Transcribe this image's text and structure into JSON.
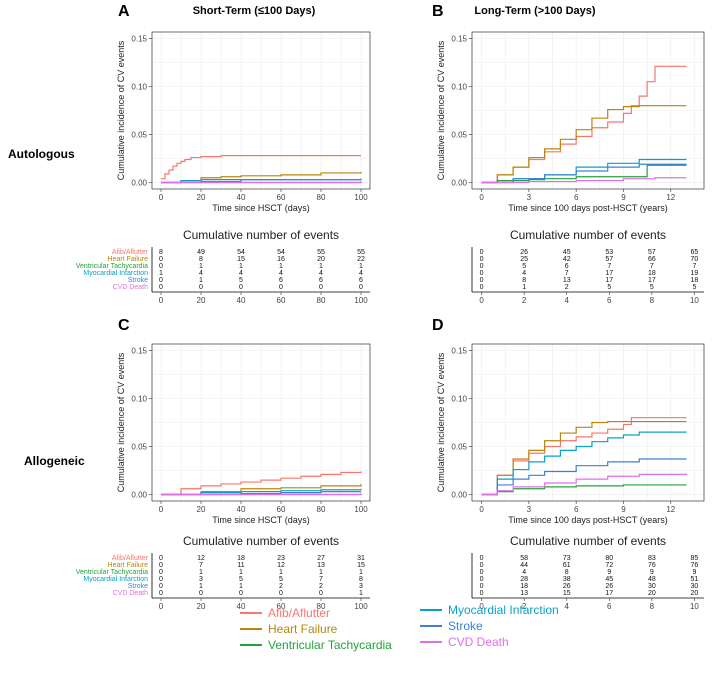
{
  "figure": {
    "column_titles": [
      "Short-Term (≤100 Days)",
      "Long-Term (>100 Days)"
    ],
    "row_titles": [
      "Autologous",
      "Allogeneic"
    ],
    "panel_letters": [
      "A",
      "B",
      "C",
      "D"
    ],
    "risk_table_title": "Cumulative number of events"
  },
  "colors": {
    "Afib/Aflutter": "#f8766d",
    "Heart Failure": "#b8860b",
    "Ventricular Tachycardia": "#22a33a",
    "Myocardial Infarction": "#0aa0c8",
    "Stroke": "#3b82d6",
    "CVD Death": "#e070e8"
  },
  "legend": [
    "Afib/Aflutter",
    "Heart Failure",
    "Ventricular Tachycardia",
    "Myocardial Infarction",
    "Stroke",
    "CVD Death"
  ],
  "chart_data": [
    {
      "type": "line",
      "panel": "A",
      "title": "Short-Term (≤100 Days)",
      "row": "Autologous",
      "xlabel": "Time since HSCT (days)",
      "ylabel": "Cumulative incidence of CV events",
      "xlim": [
        0,
        100
      ],
      "ylim": [
        0,
        0.15
      ],
      "xticks": [
        0,
        20,
        40,
        60,
        80,
        100
      ],
      "yticks": [
        0.0,
        0.05,
        0.1,
        0.15
      ],
      "series": [
        {
          "name": "Afib/Aflutter",
          "x": [
            0,
            2,
            4,
            6,
            8,
            10,
            12,
            15,
            20,
            30,
            40,
            60,
            80,
            100
          ],
          "y": [
            0.004,
            0.009,
            0.013,
            0.017,
            0.02,
            0.022,
            0.024,
            0.026,
            0.027,
            0.028,
            0.028,
            0.028,
            0.028,
            0.028
          ]
        },
        {
          "name": "Heart Failure",
          "x": [
            0,
            10,
            20,
            30,
            40,
            60,
            80,
            100
          ],
          "y": [
            0.0,
            0.002,
            0.005,
            0.006,
            0.007,
            0.008,
            0.01,
            0.011
          ]
        },
        {
          "name": "Ventricular Tachycardia",
          "x": [
            0,
            100
          ],
          "y": [
            0.0,
            0.001
          ]
        },
        {
          "name": "Myocardial Infarction",
          "x": [
            0,
            10,
            20,
            100
          ],
          "y": [
            0.0,
            0.002,
            0.003,
            0.003
          ]
        },
        {
          "name": "Stroke",
          "x": [
            0,
            20,
            40,
            100
          ],
          "y": [
            0.0,
            0.001,
            0.003,
            0.004
          ]
        },
        {
          "name": "CVD Death",
          "x": [
            0,
            100
          ],
          "y": [
            0.0,
            0.0
          ]
        }
      ],
      "risk_table": {
        "times": [
          0,
          20,
          40,
          60,
          80,
          100
        ],
        "rows": [
          {
            "name": "Afib/Aflutter",
            "values": [
              "8",
              "49",
              "54",
              "54",
              "55",
              "55"
            ]
          },
          {
            "name": "Heart Failure",
            "values": [
              "0",
              "8",
              "15",
              "16",
              "20",
              "22"
            ]
          },
          {
            "name": "Ventricular Tachycardia",
            "values": [
              "0",
              "1",
              "1",
              "1",
              "1",
              "1"
            ]
          },
          {
            "name": "Myocardial Infarction",
            "values": [
              "1",
              "4",
              "4",
              "4",
              "4",
              "4"
            ]
          },
          {
            "name": "Stroke",
            "values": [
              "0",
              "1",
              "5",
              "6",
              "6",
              "6"
            ]
          },
          {
            "name": "CVD Death",
            "values": [
              "0",
              "0",
              "0",
              "0",
              "0",
              "0"
            ]
          }
        ]
      }
    },
    {
      "type": "line",
      "panel": "B",
      "title": "Long-Term (>100 Days)",
      "row": "Autologous",
      "xlabel": "Time since 100 days post-HSCT (years)",
      "ylabel": "Cumulative incidence of CV events",
      "xlim": [
        0,
        13.5
      ],
      "ylim": [
        0,
        0.15
      ],
      "xticks": [
        0,
        3,
        6,
        9,
        12
      ],
      "yticks": [
        0.0,
        0.05,
        0.1,
        0.15
      ],
      "series": [
        {
          "name": "Afib/Aflutter",
          "x": [
            0,
            1,
            2,
            3,
            4,
            5,
            6,
            7,
            8,
            9,
            9.5,
            10,
            10.5,
            11,
            12,
            13
          ],
          "y": [
            0.0,
            0.008,
            0.016,
            0.024,
            0.032,
            0.04,
            0.048,
            0.057,
            0.063,
            0.072,
            0.08,
            0.09,
            0.105,
            0.121,
            0.121,
            0.121
          ]
        },
        {
          "name": "Heart Failure",
          "x": [
            0,
            1,
            2,
            3,
            4,
            5,
            6,
            7,
            8,
            9,
            10,
            11,
            12,
            13
          ],
          "y": [
            0.0,
            0.008,
            0.016,
            0.026,
            0.035,
            0.045,
            0.055,
            0.067,
            0.076,
            0.079,
            0.08,
            0.08,
            0.08,
            0.08
          ]
        },
        {
          "name": "Ventricular Tachycardia",
          "x": [
            0,
            1,
            3,
            4,
            6,
            9,
            10.5,
            13
          ],
          "y": [
            0.0,
            0.002,
            0.003,
            0.004,
            0.006,
            0.006,
            0.018,
            0.018
          ]
        },
        {
          "name": "Myocardial Infarction",
          "x": [
            0,
            2,
            4,
            6,
            8,
            10,
            13
          ],
          "y": [
            0.0,
            0.004,
            0.008,
            0.016,
            0.02,
            0.024,
            0.024
          ]
        },
        {
          "name": "Stroke",
          "x": [
            0,
            2,
            4,
            6,
            8,
            10,
            13
          ],
          "y": [
            0.0,
            0.004,
            0.008,
            0.012,
            0.016,
            0.019,
            0.019
          ]
        },
        {
          "name": "CVD Death",
          "x": [
            0,
            3,
            6,
            9,
            11,
            13
          ],
          "y": [
            0.0,
            0.001,
            0.002,
            0.004,
            0.005,
            0.005
          ]
        }
      ],
      "risk_table": {
        "times": [
          0,
          2,
          4,
          6,
          8,
          10
        ],
        "rows": [
          {
            "name": "Afib/Aflutter",
            "values": [
              "0",
              "26",
              "45",
              "53",
              "57",
              "65"
            ]
          },
          {
            "name": "Heart Failure",
            "values": [
              "0",
              "25",
              "42",
              "57",
              "66",
              "70"
            ]
          },
          {
            "name": "Ventricular Tachycardia",
            "values": [
              "0",
              "5",
              "6",
              "7",
              "7",
              "7"
            ]
          },
          {
            "name": "Myocardial Infarction",
            "values": [
              "0",
              "4",
              "7",
              "17",
              "18",
              "19"
            ]
          },
          {
            "name": "Stroke",
            "values": [
              "0",
              "8",
              "13",
              "17",
              "17",
              "18"
            ]
          },
          {
            "name": "CVD Death",
            "values": [
              "0",
              "1",
              "2",
              "5",
              "5",
              "5"
            ]
          }
        ]
      }
    },
    {
      "type": "line",
      "panel": "C",
      "title": "Short-Term (≤100 Days)",
      "row": "Allogeneic",
      "xlabel": "Time since HSCT (days)",
      "ylabel": "Cumulative incidence of CV events",
      "xlim": [
        0,
        100
      ],
      "ylim": [
        0,
        0.15
      ],
      "xticks": [
        0,
        20,
        40,
        60,
        80,
        100
      ],
      "yticks": [
        0.0,
        0.05,
        0.1,
        0.15
      ],
      "series": [
        {
          "name": "Afib/Aflutter",
          "x": [
            0,
            10,
            20,
            30,
            40,
            50,
            60,
            70,
            80,
            90,
            100
          ],
          "y": [
            0.0,
            0.006,
            0.009,
            0.011,
            0.013,
            0.015,
            0.017,
            0.019,
            0.021,
            0.023,
            0.024
          ]
        },
        {
          "name": "Heart Failure",
          "x": [
            0,
            20,
            40,
            60,
            80,
            100
          ],
          "y": [
            0.0,
            0.003,
            0.006,
            0.007,
            0.009,
            0.011
          ]
        },
        {
          "name": "Ventricular Tachycardia",
          "x": [
            0,
            100
          ],
          "y": [
            0.0,
            0.001
          ]
        },
        {
          "name": "Myocardial Infarction",
          "x": [
            0,
            20,
            40,
            60,
            80,
            100
          ],
          "y": [
            0.0,
            0.002,
            0.003,
            0.004,
            0.005,
            0.006
          ]
        },
        {
          "name": "Stroke",
          "x": [
            0,
            40,
            60,
            80,
            100
          ],
          "y": [
            0.0,
            0.001,
            0.002,
            0.003,
            0.003
          ]
        },
        {
          "name": "CVD Death",
          "x": [
            0,
            100
          ],
          "y": [
            0.0,
            0.0
          ]
        }
      ],
      "risk_table": {
        "times": [
          0,
          20,
          40,
          60,
          80,
          100
        ],
        "rows": [
          {
            "name": "Afib/Aflutter",
            "values": [
              "0",
              "12",
              "18",
              "23",
              "27",
              "31"
            ]
          },
          {
            "name": "Heart Failure",
            "values": [
              "0",
              "7",
              "11",
              "12",
              "13",
              "15"
            ]
          },
          {
            "name": "Ventricular Tachycardia",
            "values": [
              "0",
              "1",
              "1",
              "1",
              "1",
              "1"
            ]
          },
          {
            "name": "Myocardial Infarction",
            "values": [
              "0",
              "3",
              "5",
              "5",
              "7",
              "8"
            ]
          },
          {
            "name": "Stroke",
            "values": [
              "0",
              "1",
              "1",
              "2",
              "2",
              "3"
            ]
          },
          {
            "name": "CVD Death",
            "values": [
              "0",
              "0",
              "0",
              "0",
              "0",
              "1"
            ]
          }
        ]
      }
    },
    {
      "type": "line",
      "panel": "D",
      "title": "Long-Term (>100 Days)",
      "row": "Allogeneic",
      "xlabel": "Time since 100 days post-HSCT (years)",
      "ylabel": "Cumulative incidence of CV events",
      "xlim": [
        0,
        13.5
      ],
      "ylim": [
        0,
        0.15
      ],
      "xticks": [
        0,
        3,
        6,
        9,
        12
      ],
      "yticks": [
        0.0,
        0.05,
        0.1,
        0.15
      ],
      "series": [
        {
          "name": "Afib/Aflutter",
          "x": [
            0,
            1,
            2,
            3,
            4,
            5,
            6,
            7,
            8,
            9,
            9.5,
            10,
            13
          ],
          "y": [
            0.0,
            0.02,
            0.035,
            0.043,
            0.05,
            0.056,
            0.06,
            0.064,
            0.068,
            0.073,
            0.08,
            0.08,
            0.08
          ]
        },
        {
          "name": "Heart Failure",
          "x": [
            0,
            1,
            2,
            3,
            4,
            5,
            6,
            7,
            8,
            13
          ],
          "y": [
            0.0,
            0.02,
            0.037,
            0.046,
            0.056,
            0.064,
            0.07,
            0.075,
            0.076,
            0.076
          ]
        },
        {
          "name": "Ventricular Tachycardia",
          "x": [
            0,
            1,
            2,
            4,
            6,
            9,
            13
          ],
          "y": [
            0.0,
            0.003,
            0.006,
            0.008,
            0.009,
            0.01,
            0.01
          ]
        },
        {
          "name": "Myocardial Infarction",
          "x": [
            0,
            1,
            2,
            3,
            4,
            5,
            6,
            7,
            8,
            9,
            10,
            13
          ],
          "y": [
            0.0,
            0.016,
            0.026,
            0.034,
            0.04,
            0.046,
            0.05,
            0.055,
            0.059,
            0.062,
            0.065,
            0.065
          ]
        },
        {
          "name": "Stroke",
          "x": [
            0,
            1,
            2,
            3,
            4,
            6,
            8,
            10,
            13
          ],
          "y": [
            0.0,
            0.01,
            0.016,
            0.02,
            0.024,
            0.03,
            0.034,
            0.037,
            0.037
          ]
        },
        {
          "name": "CVD Death",
          "x": [
            0,
            1,
            2,
            4,
            6,
            8,
            10,
            13
          ],
          "y": [
            0.0,
            0.004,
            0.008,
            0.012,
            0.016,
            0.019,
            0.021,
            0.022
          ]
        }
      ],
      "risk_table": {
        "times": [
          0,
          2,
          4,
          6,
          8,
          10
        ],
        "rows": [
          {
            "name": "Afib/Aflutter",
            "values": [
              "0",
              "58",
              "73",
              "80",
              "83",
              "85"
            ]
          },
          {
            "name": "Heart Failure",
            "values": [
              "0",
              "44",
              "61",
              "72",
              "76",
              "76"
            ]
          },
          {
            "name": "Ventricular Tachycardia",
            "values": [
              "0",
              "4",
              "8",
              "9",
              "9",
              "9"
            ]
          },
          {
            "name": "Myocardial Infarction",
            "values": [
              "0",
              "28",
              "38",
              "45",
              "48",
              "51"
            ]
          },
          {
            "name": "Stroke",
            "values": [
              "0",
              "18",
              "26",
              "26",
              "30",
              "30"
            ]
          },
          {
            "name": "CVD Death",
            "values": [
              "0",
              "13",
              "15",
              "17",
              "20",
              "20"
            ]
          }
        ]
      }
    }
  ]
}
